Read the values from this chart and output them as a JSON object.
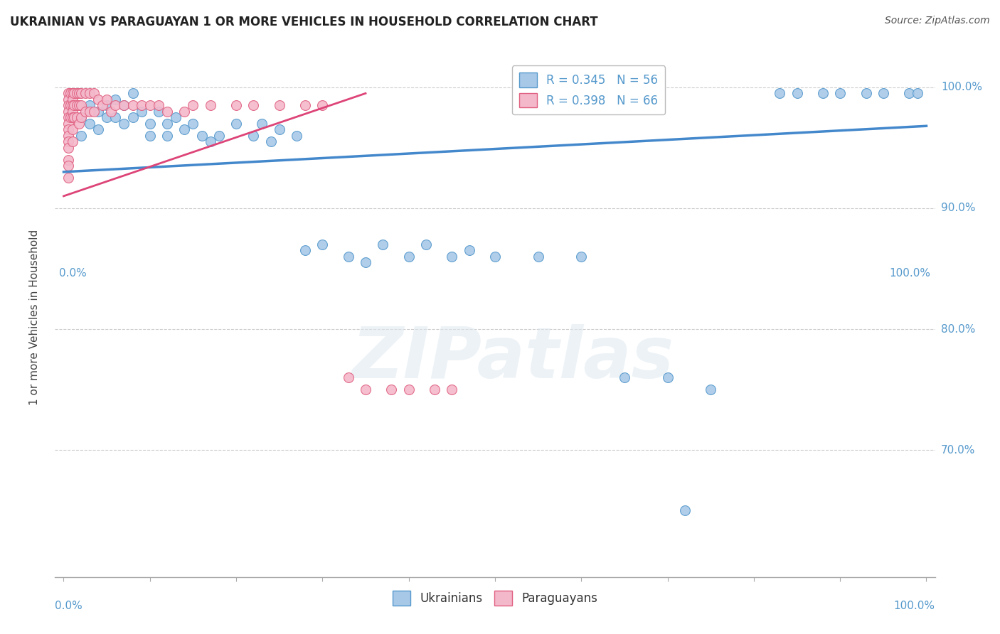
{
  "title": "UKRAINIAN VS PARAGUAYAN 1 OR MORE VEHICLES IN HOUSEHOLD CORRELATION CHART",
  "source": "Source: ZipAtlas.com",
  "ylabel": "1 or more Vehicles in Household",
  "ytick_labels": [
    "70.0%",
    "80.0%",
    "90.0%",
    "100.0%"
  ],
  "ytick_values": [
    0.7,
    0.8,
    0.9,
    1.0
  ],
  "xlim": [
    -0.01,
    1.01
  ],
  "ylim": [
    0.595,
    1.025
  ],
  "background_color": "#ffffff",
  "watermark_text": "ZIPatlas",
  "legend_label_blue": "R = 0.345   N = 56",
  "legend_label_pink": "R = 0.398   N = 66",
  "legend_labels_bottom": [
    "Ukrainians",
    "Paraguayans"
  ],
  "blue_color": "#a8c8e8",
  "pink_color": "#f4b8cb",
  "blue_edge_color": "#5599cc",
  "pink_edge_color": "#e06080",
  "blue_line_color": "#4488cc",
  "pink_line_color": "#dd4477",
  "axis_label_color": "#5599cc",
  "title_color": "#222222",
  "dot_size": 100,
  "ukrainians_x": [
    0.02,
    0.02,
    0.03,
    0.03,
    0.04,
    0.04,
    0.05,
    0.05,
    0.06,
    0.06,
    0.07,
    0.07,
    0.08,
    0.08,
    0.09,
    0.1,
    0.1,
    0.11,
    0.12,
    0.12,
    0.13,
    0.14,
    0.15,
    0.16,
    0.17,
    0.18,
    0.2,
    0.22,
    0.23,
    0.24,
    0.25,
    0.27,
    0.28,
    0.3,
    0.33,
    0.35,
    0.37,
    0.4,
    0.42,
    0.45,
    0.47,
    0.5,
    0.55,
    0.6,
    0.65,
    0.7,
    0.72,
    0.75,
    0.83,
    0.85,
    0.88,
    0.9,
    0.93,
    0.95,
    0.98,
    0.99
  ],
  "ukrainians_y": [
    0.975,
    0.96,
    0.985,
    0.97,
    0.98,
    0.965,
    0.985,
    0.975,
    0.99,
    0.975,
    0.985,
    0.97,
    0.995,
    0.975,
    0.98,
    0.97,
    0.96,
    0.98,
    0.97,
    0.96,
    0.975,
    0.965,
    0.97,
    0.96,
    0.955,
    0.96,
    0.97,
    0.96,
    0.97,
    0.955,
    0.965,
    0.96,
    0.865,
    0.87,
    0.86,
    0.855,
    0.87,
    0.86,
    0.87,
    0.86,
    0.865,
    0.86,
    0.86,
    0.86,
    0.76,
    0.76,
    0.65,
    0.75,
    0.995,
    0.995,
    0.995,
    0.995,
    0.995,
    0.995,
    0.995,
    0.995
  ],
  "paraguayans_x": [
    0.005,
    0.005,
    0.005,
    0.005,
    0.005,
    0.005,
    0.005,
    0.005,
    0.005,
    0.005,
    0.005,
    0.005,
    0.005,
    0.008,
    0.008,
    0.008,
    0.01,
    0.01,
    0.01,
    0.01,
    0.01,
    0.01,
    0.01,
    0.012,
    0.012,
    0.012,
    0.015,
    0.015,
    0.015,
    0.018,
    0.018,
    0.018,
    0.02,
    0.02,
    0.02,
    0.025,
    0.025,
    0.03,
    0.03,
    0.035,
    0.035,
    0.04,
    0.045,
    0.05,
    0.055,
    0.06,
    0.07,
    0.08,
    0.09,
    0.1,
    0.11,
    0.12,
    0.14,
    0.15,
    0.17,
    0.2,
    0.22,
    0.25,
    0.28,
    0.3,
    0.33,
    0.35,
    0.38,
    0.4,
    0.43,
    0.45
  ],
  "paraguayans_y": [
    0.995,
    0.99,
    0.985,
    0.98,
    0.975,
    0.97,
    0.965,
    0.96,
    0.955,
    0.95,
    0.94,
    0.935,
    0.925,
    0.995,
    0.985,
    0.975,
    0.995,
    0.99,
    0.985,
    0.98,
    0.975,
    0.965,
    0.955,
    0.995,
    0.985,
    0.975,
    0.995,
    0.985,
    0.975,
    0.995,
    0.985,
    0.97,
    0.995,
    0.985,
    0.975,
    0.995,
    0.98,
    0.995,
    0.98,
    0.995,
    0.98,
    0.99,
    0.985,
    0.99,
    0.98,
    0.985,
    0.985,
    0.985,
    0.985,
    0.985,
    0.985,
    0.98,
    0.98,
    0.985,
    0.985,
    0.985,
    0.985,
    0.985,
    0.985,
    0.985,
    0.76,
    0.75,
    0.75,
    0.75,
    0.75,
    0.75
  ],
  "blue_trendline_x": [
    0.0,
    1.0
  ],
  "blue_trendline_y": [
    0.93,
    0.968
  ],
  "pink_trendline_x": [
    0.0,
    0.35
  ],
  "pink_trendline_y": [
    0.91,
    0.995
  ]
}
